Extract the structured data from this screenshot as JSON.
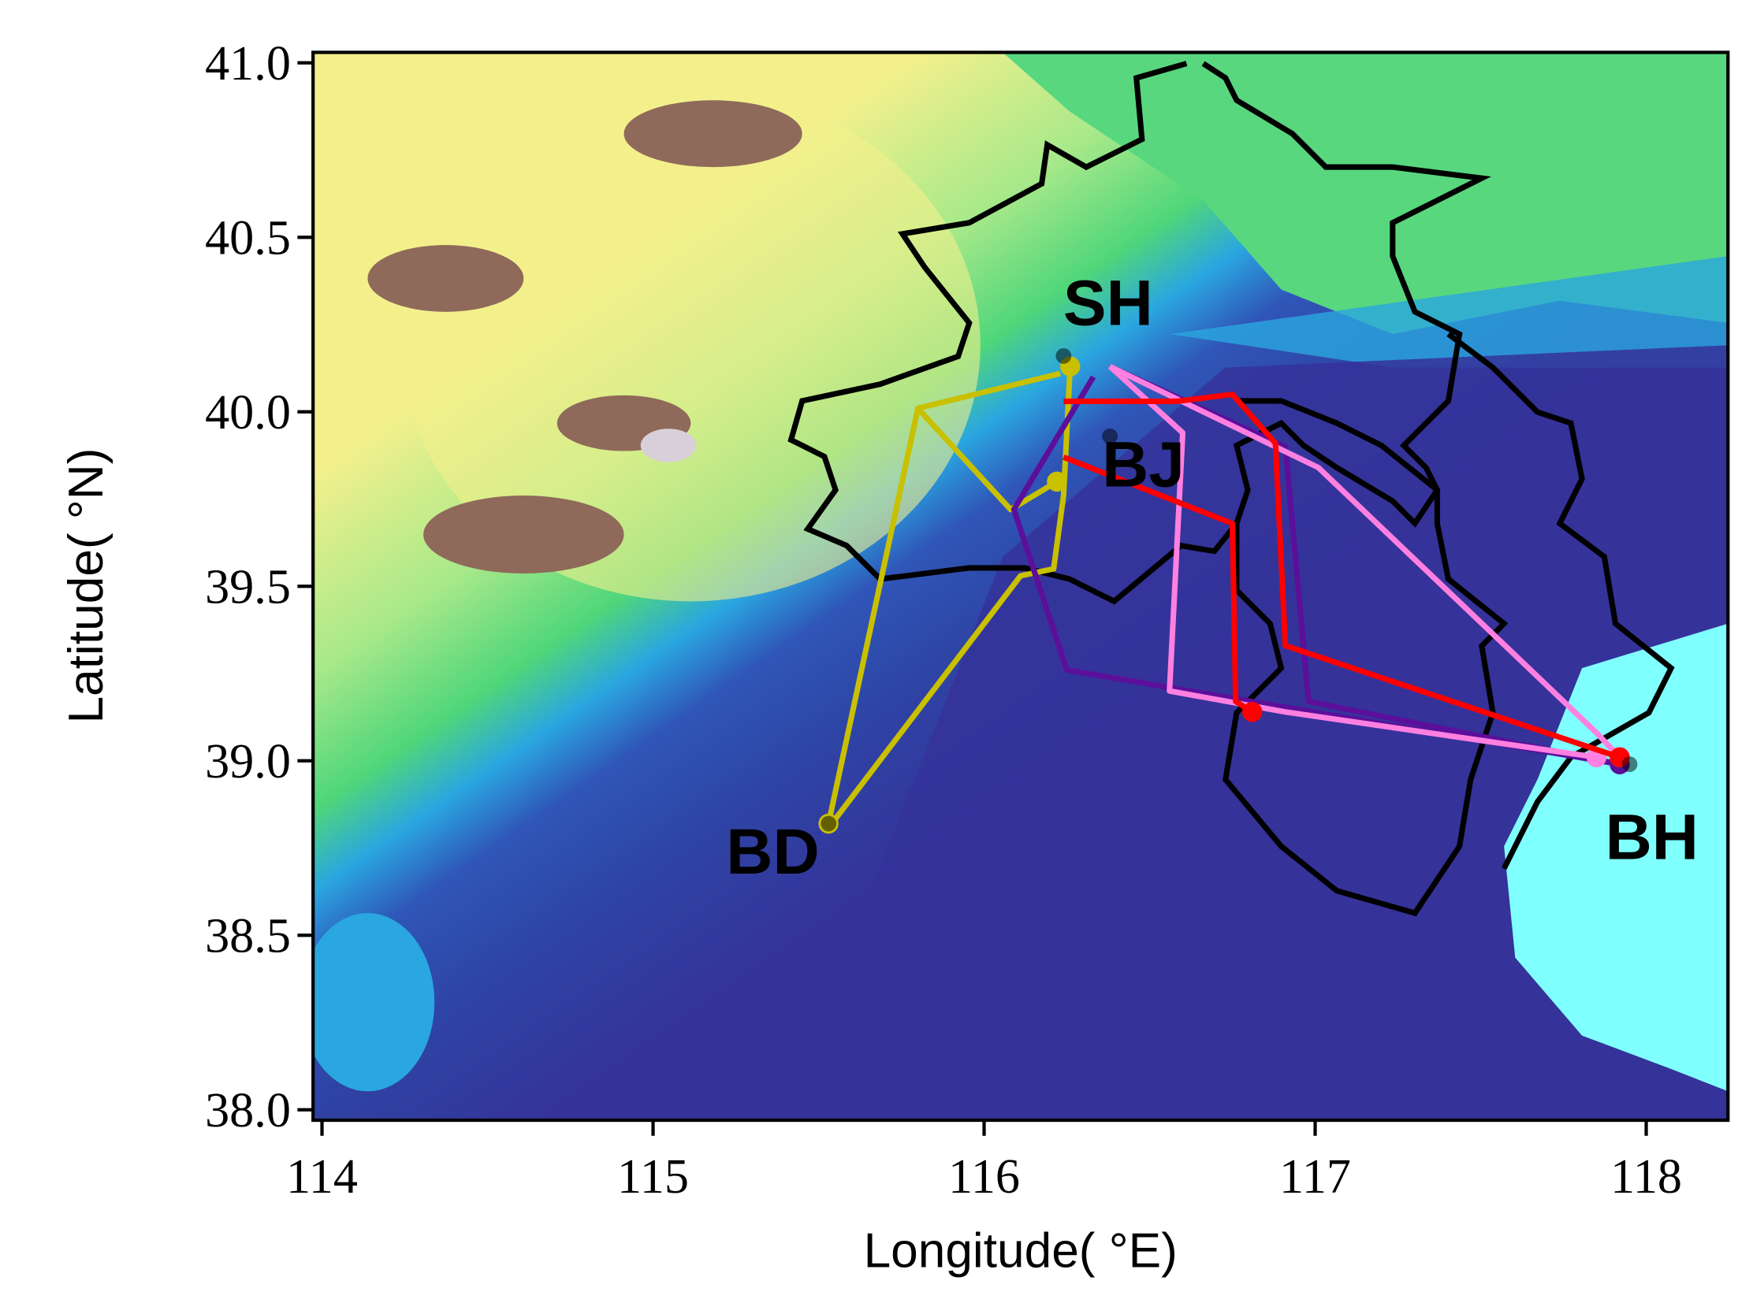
{
  "chart_data": {
    "type": "trajectory-map",
    "x_label": "Longitude( °E)",
    "y_label": "Latitude( °N)",
    "xlim": [
      113.973,
      118.247
    ],
    "ylim": [
      37.97,
      41.03
    ],
    "xticks": [
      114,
      115,
      116,
      117,
      118
    ],
    "yticks": [
      {
        "value": 38,
        "label": "38.0"
      },
      38.5,
      {
        "value": 39,
        "label": "39.0"
      },
      39.5,
      {
        "value": 40,
        "label": "40.0"
      },
      40.5,
      {
        "value": 41,
        "label": "41.0"
      }
    ],
    "sites": [
      {
        "label": "SH",
        "lon": 116.24,
        "lat": 40.16
      },
      {
        "label": "BJ",
        "lon": 116.38,
        "lat": 39.93
      },
      {
        "label": "BD",
        "lon": 115.53,
        "lat": 38.82
      },
      {
        "label": "BH",
        "lon": 117.95,
        "lat": 38.99
      }
    ],
    "series": [
      {
        "color": "#c8c000",
        "x": [
          116.23,
          115.8,
          115.53
        ],
        "y": [
          40.11,
          40.01,
          38.82
        ]
      },
      {
        "color": "#c8c000",
        "x": [
          115.54,
          116.11,
          116.21,
          116.24,
          116.26
        ],
        "y": [
          38.82,
          39.53,
          39.55,
          39.76,
          40.13
        ]
      },
      {
        "color": "#c8c000",
        "x": [
          115.8,
          116.08,
          116.22
        ],
        "y": [
          40.01,
          39.72,
          39.8
        ]
      },
      {
        "color": "#5b0f9b",
        "x": [
          116.33,
          116.09,
          116.25,
          117.92
        ],
        "y": [
          40.1,
          39.72,
          39.26,
          38.99
        ]
      },
      {
        "color": "#5b0f9b",
        "x": [
          116.38,
          116.91,
          116.98,
          117.92
        ],
        "y": [
          40.13,
          39.9,
          39.17,
          38.99
        ]
      },
      {
        "color": "#ff80e0",
        "x": [
          116.38,
          116.6,
          116.56,
          116.91,
          117.85
        ],
        "y": [
          40.13,
          39.94,
          39.2,
          39.14,
          39.01
        ]
      },
      {
        "color": "#ff80e0",
        "x": [
          116.38,
          117.01,
          117.85,
          117.92
        ],
        "y": [
          40.13,
          39.84,
          39.08,
          39.01
        ]
      },
      {
        "color": "#ff0000",
        "x": [
          116.24,
          116.58,
          116.75,
          116.88,
          116.91,
          117.92
        ],
        "y": [
          40.03,
          40.03,
          40.05,
          39.91,
          39.33,
          39.01
        ]
      },
      {
        "color": "#ff0000",
        "x": [
          116.24,
          116.75,
          116.76,
          116.81
        ],
        "y": [
          39.87,
          39.68,
          39.17,
          39.14
        ]
      }
    ]
  }
}
